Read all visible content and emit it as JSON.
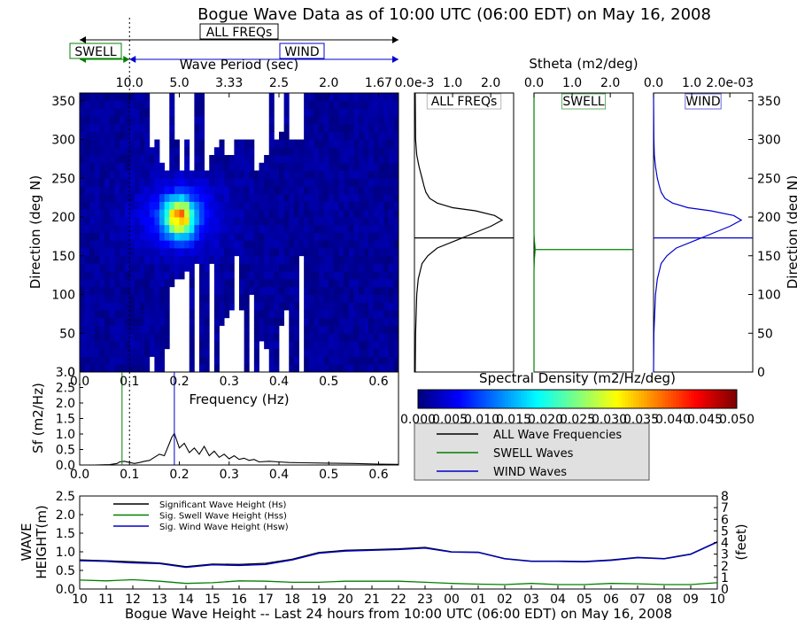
{
  "title": "Bogue Wave Data as of 10:00 UTC (06:00 EDT) on May 16, 2008",
  "band_labels": {
    "all": "ALL FREQs",
    "swell": "SWELL",
    "wind": "WIND"
  },
  "colors": {
    "all": "#000000",
    "swell": "#008000",
    "wind": "#0000cc",
    "legend_bg": "#e0e0e0"
  },
  "chart_data": [
    {
      "id": "spectrum2d",
      "type": "heatmap",
      "title": "",
      "xlabel": "",
      "ylabel": "Direction (deg N)",
      "top_xlabel": "Wave Period (sec)",
      "top_ticks": [
        "10.0",
        "5.0",
        "3.33",
        "2.5",
        "2.0",
        "1.67"
      ],
      "xlim": [
        0.0,
        0.64
      ],
      "ylim": [
        0,
        360
      ],
      "yticks": [
        0,
        50,
        100,
        150,
        200,
        250,
        300,
        350
      ],
      "swell_wind_split_hz": 0.1,
      "peak": {
        "freq_hz": 0.2,
        "dir_deg": 200
      }
    },
    {
      "id": "stheta_all",
      "type": "line",
      "title": "ALL FREQs",
      "top_label": "Stheta (m2/deg)",
      "top_ticks": [
        "0.0e-3",
        "1.0",
        "2.0"
      ],
      "xlim": [
        0.0,
        2.6
      ],
      "ylim": [
        0,
        360
      ],
      "mean_dir_deg": 173,
      "x": [
        0.02,
        0.03,
        0.06,
        0.1,
        0.2,
        0.35,
        0.6,
        1.1,
        1.6,
        2.0,
        2.3,
        2.1,
        1.6,
        1.0,
        0.6,
        0.4,
        0.3,
        0.25,
        0.2,
        0.12,
        0.06,
        0.03,
        0.02
      ],
      "y": [
        0,
        50,
        100,
        120,
        140,
        150,
        160,
        170,
        180,
        188,
        196,
        202,
        208,
        212,
        218,
        224,
        232,
        240,
        250,
        265,
        280,
        300,
        360
      ]
    },
    {
      "id": "stheta_swell",
      "type": "line",
      "title": "SWELL",
      "top_ticks": [
        "0.0",
        "1.0",
        "2.0"
      ],
      "xlim": [
        0.0,
        2.6
      ],
      "ylim": [
        0,
        360
      ],
      "mean_dir_deg": 158,
      "x": [
        0.0,
        0.0,
        0.01,
        0.02,
        0.03,
        0.02,
        0.01,
        0.0,
        0.0
      ],
      "y": [
        0,
        130,
        145,
        152,
        158,
        164,
        170,
        180,
        360
      ]
    },
    {
      "id": "stheta_wind",
      "type": "line",
      "title": "WIND",
      "top_ticks": [
        "0.0",
        "1.0",
        "2.0e-03"
      ],
      "xlim": [
        0.0,
        2.6
      ],
      "ylim": [
        0,
        360
      ],
      "yticks": [
        0,
        50,
        100,
        150,
        200,
        250,
        300,
        350
      ],
      "ylabel": "Direction (deg N)",
      "mean_dir_deg": 173,
      "x": [
        0.0,
        0.01,
        0.05,
        0.1,
        0.2,
        0.35,
        0.6,
        1.1,
        1.6,
        2.0,
        2.3,
        2.1,
        1.5,
        0.9,
        0.5,
        0.3,
        0.2,
        0.15,
        0.1,
        0.05,
        0.02,
        0.01,
        0.0
      ],
      "y": [
        0,
        50,
        100,
        120,
        140,
        150,
        160,
        170,
        180,
        188,
        196,
        202,
        208,
        212,
        218,
        224,
        232,
        240,
        250,
        265,
        280,
        300,
        360
      ]
    },
    {
      "id": "colorbar",
      "type": "heatmap",
      "title": "Spectral Density (m2/Hz/deg)",
      "ticks": [
        "0.000",
        "0.005",
        "0.010",
        "0.015",
        "0.020",
        "0.025",
        "0.030",
        "0.035",
        "0.040",
        "0.045",
        "0.050"
      ],
      "range": [
        0.0,
        0.05
      ]
    },
    {
      "id": "spectrum1d",
      "type": "line",
      "title": "",
      "xlabel": "Frequency (Hz)",
      "ylabel": "Sf (m2/Hz)",
      "xlim": [
        0.0,
        0.64
      ],
      "ylim": [
        0.0,
        3.0
      ],
      "xticks": [
        "0.0",
        "0.1",
        "0.2",
        "0.3",
        "0.4",
        "0.5",
        "0.6"
      ],
      "yticks": [
        "0.0",
        "0.5",
        "1.0",
        "1.5",
        "2.0",
        "2.5",
        "3.0"
      ],
      "swell_peak_hz": 0.085,
      "wind_peak_hz": 0.19,
      "x": [
        0.0,
        0.03,
        0.06,
        0.075,
        0.08,
        0.09,
        0.1,
        0.11,
        0.12,
        0.13,
        0.14,
        0.15,
        0.16,
        0.17,
        0.18,
        0.185,
        0.19,
        0.2,
        0.21,
        0.22,
        0.23,
        0.24,
        0.25,
        0.26,
        0.27,
        0.28,
        0.29,
        0.3,
        0.31,
        0.32,
        0.33,
        0.34,
        0.35,
        0.36,
        0.38,
        0.4,
        0.42,
        0.45,
        0.5,
        0.55,
        0.6,
        0.64
      ],
      "y": [
        0.0,
        0.0,
        0.01,
        0.05,
        0.1,
        0.12,
        0.08,
        0.05,
        0.08,
        0.12,
        0.15,
        0.25,
        0.35,
        0.3,
        0.7,
        0.9,
        1.02,
        0.55,
        0.7,
        0.4,
        0.55,
        0.35,
        0.6,
        0.3,
        0.45,
        0.25,
        0.35,
        0.2,
        0.3,
        0.18,
        0.22,
        0.15,
        0.18,
        0.1,
        0.12,
        0.1,
        0.08,
        0.07,
        0.06,
        0.05,
        0.03,
        0.02
      ]
    },
    {
      "id": "legend_dirs",
      "type": "line",
      "entries": [
        "ALL Wave Frequencies",
        "SWELL Waves",
        "WIND Waves"
      ]
    },
    {
      "id": "wave_height",
      "type": "line",
      "title": "Bogue Wave Height -- Last 24 hours from 10:00 UTC (06:00 EDT) on May 16, 2008",
      "ylabel": "WAVE HEIGHT(m)",
      "ylabel_right": "(feet)",
      "ylim": [
        0.0,
        2.5
      ],
      "ylim_right": [
        0,
        8
      ],
      "yticks": [
        "0.0",
        "0.5",
        "1.0",
        "1.5",
        "2.0",
        "2.5"
      ],
      "yticks_right": [
        "0",
        "1",
        "2",
        "3",
        "4",
        "5",
        "6",
        "7",
        "8"
      ],
      "categories": [
        "10",
        "11",
        "12",
        "13",
        "14",
        "15",
        "16",
        "17",
        "18",
        "19",
        "20",
        "21",
        "22",
        "23",
        "00",
        "01",
        "02",
        "03",
        "04",
        "05",
        "06",
        "07",
        "08",
        "09",
        "10"
      ],
      "legend": [
        "Significant Wave Height (Hs)",
        "Sig. Swell Wave Height (Hss)",
        "Sig. Wind Wave Height (Hsw)"
      ],
      "series": [
        {
          "name": "Significant Wave Height (Hs)",
          "values": [
            0.78,
            0.76,
            0.73,
            0.7,
            0.6,
            0.67,
            0.66,
            0.69,
            0.8,
            0.98,
            1.04,
            1.06,
            1.08,
            1.12,
            1.0,
            0.99,
            0.82,
            0.75,
            0.75,
            0.74,
            0.78,
            0.85,
            0.82,
            0.94,
            1.27
          ]
        },
        {
          "name": "Sig. Swell Wave Height (Hss)",
          "values": [
            0.24,
            0.22,
            0.25,
            0.21,
            0.15,
            0.17,
            0.22,
            0.21,
            0.18,
            0.18,
            0.21,
            0.21,
            0.21,
            0.18,
            0.15,
            0.13,
            0.12,
            0.15,
            0.12,
            0.12,
            0.15,
            0.14,
            0.12,
            0.12,
            0.17
          ]
        },
        {
          "name": "Sig. Wind Wave Height (Hsw)",
          "values": [
            0.76,
            0.74,
            0.7,
            0.68,
            0.58,
            0.65,
            0.63,
            0.66,
            0.78,
            0.96,
            1.02,
            1.04,
            1.06,
            1.1,
            0.99,
            0.98,
            0.81,
            0.74,
            0.74,
            0.73,
            0.77,
            0.84,
            0.81,
            0.93,
            1.26
          ]
        }
      ]
    }
  ]
}
